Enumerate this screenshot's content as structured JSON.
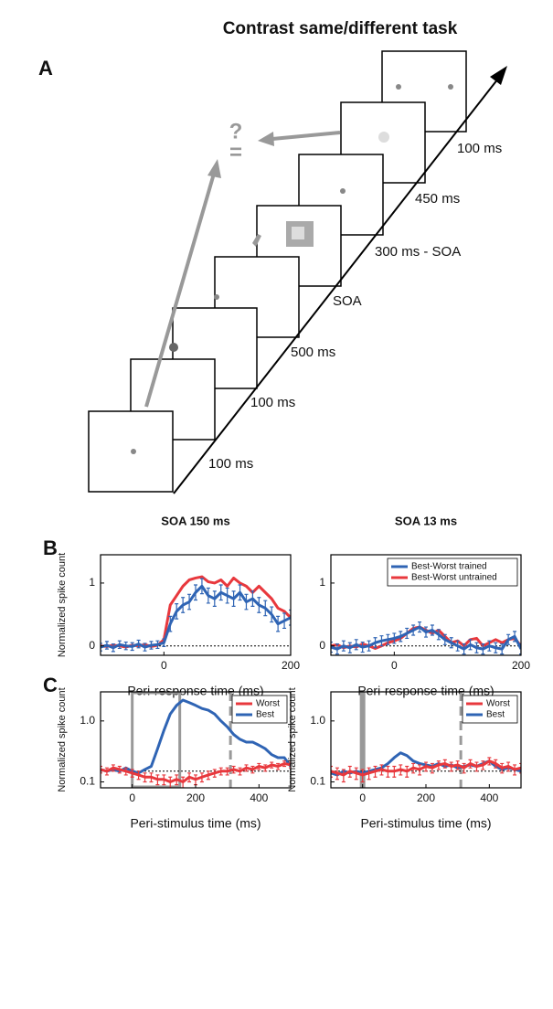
{
  "panel_a": {
    "title": "Contrast same/different task",
    "label": "A",
    "durations": [
      "100 ms",
      "100 ms",
      "500 ms",
      "SOA",
      "300 ms - SOA",
      "450 ms",
      "100 ms"
    ],
    "question": "?",
    "equals": "="
  },
  "chart_data": [
    {
      "type": "line",
      "panel_label": "B",
      "title": "SOA 150 ms",
      "ylabel": "Normalized spike count",
      "xlabel": "Peri-response time (ms)",
      "x": [
        -100,
        -90,
        -80,
        -70,
        -60,
        -50,
        -40,
        -30,
        -20,
        -10,
        0,
        10,
        20,
        30,
        40,
        50,
        60,
        70,
        80,
        90,
        100,
        110,
        120,
        130,
        140,
        150,
        160,
        170,
        180,
        190,
        200
      ],
      "xlim": [
        -100,
        200
      ],
      "xticks": [
        0,
        200
      ],
      "ylim": [
        -0.15,
        1.45
      ],
      "yticks": [
        0,
        1
      ],
      "hline": 0,
      "series": [
        {
          "color": "#e8383d",
          "values": [
            0.0,
            -0.01,
            0.01,
            0.0,
            -0.02,
            0.01,
            0.0,
            0.02,
            -0.01,
            0.01,
            0.1,
            0.65,
            0.8,
            0.95,
            1.05,
            1.08,
            1.1,
            1.02,
            1.0,
            1.05,
            0.95,
            1.08,
            1.0,
            0.95,
            0.85,
            0.95,
            0.85,
            0.75,
            0.6,
            0.55,
            0.45
          ]
        },
        {
          "color": "#2f64b4",
          "values": [
            -0.02,
            0.01,
            -0.03,
            0.02,
            0.0,
            -0.01,
            0.03,
            -0.02,
            0.01,
            0.02,
            0.05,
            0.35,
            0.55,
            0.65,
            0.7,
            0.85,
            0.95,
            0.8,
            0.75,
            0.85,
            0.8,
            0.75,
            0.85,
            0.7,
            0.75,
            0.65,
            0.6,
            0.5,
            0.35,
            0.4,
            0.45
          ],
          "errors": [
            0.06,
            0.06,
            0.06,
            0.06,
            0.06,
            0.06,
            0.06,
            0.06,
            0.06,
            0.06,
            0.06,
            0.12,
            0.12,
            0.12,
            0.12,
            0.12,
            0.12,
            0.12,
            0.12,
            0.12,
            0.12,
            0.12,
            0.12,
            0.12,
            0.12,
            0.12,
            0.12,
            0.12,
            0.12,
            0.12,
            0.12
          ]
        }
      ]
    },
    {
      "type": "line",
      "title": "SOA 13 ms",
      "xlabel": "Peri-response time (ms)",
      "x": [
        -100,
        -90,
        -80,
        -70,
        -60,
        -50,
        -40,
        -30,
        -20,
        -10,
        0,
        10,
        20,
        30,
        40,
        50,
        60,
        70,
        80,
        90,
        100,
        110,
        120,
        130,
        140,
        150,
        160,
        170,
        180,
        190,
        200
      ],
      "xlim": [
        -100,
        200
      ],
      "xticks": [
        0,
        200
      ],
      "ylim": [
        -0.15,
        1.45
      ],
      "yticks": [
        0,
        1
      ],
      "hline": 0,
      "legend": "upper right",
      "series": [
        {
          "name": "Best-Worst untrained",
          "color": "#e8383d",
          "values": [
            0.0,
            0.02,
            -0.03,
            0.0,
            -0.02,
            0.03,
            0.0,
            -0.04,
            0.0,
            0.05,
            0.08,
            0.12,
            0.2,
            0.28,
            0.3,
            0.25,
            0.2,
            0.25,
            0.15,
            0.05,
            0.08,
            0.0,
            0.1,
            0.12,
            0.0,
            0.05,
            0.1,
            0.05,
            0.1,
            0.12,
            0.0
          ]
        },
        {
          "name": "Best-Worst trained",
          "color": "#2f64b4",
          "values": [
            -0.02,
            -0.05,
            0.0,
            -0.03,
            0.02,
            -0.02,
            0.0,
            0.05,
            0.08,
            0.1,
            0.12,
            0.15,
            0.2,
            0.25,
            0.3,
            0.22,
            0.25,
            0.18,
            0.1,
            0.05,
            0.0,
            -0.05,
            0.02,
            -0.03,
            -0.05,
            0.0,
            -0.03,
            -0.05,
            0.1,
            0.15,
            -0.05
          ],
          "errors": [
            0.08,
            0.08,
            0.08,
            0.08,
            0.08,
            0.08,
            0.08,
            0.08,
            0.08,
            0.08,
            0.08,
            0.08,
            0.08,
            0.08,
            0.08,
            0.08,
            0.08,
            0.08,
            0.08,
            0.08,
            0.08,
            0.08,
            0.08,
            0.08,
            0.08,
            0.08,
            0.08,
            0.08,
            0.08,
            0.08,
            0.08
          ]
        }
      ]
    },
    {
      "type": "line",
      "panel_label": "C",
      "ylabel": "Normalized spike count",
      "xlabel": "Peri-stimulus time (ms)",
      "log_y": true,
      "x": [
        -100,
        -80,
        -60,
        -40,
        -20,
        0,
        20,
        40,
        60,
        80,
        100,
        120,
        140,
        160,
        180,
        200,
        220,
        240,
        260,
        280,
        300,
        320,
        340,
        360,
        380,
        400,
        420,
        440,
        460,
        480,
        500
      ],
      "xlim": [
        -100,
        500
      ],
      "xticks": [
        0,
        200,
        400
      ],
      "ylim": [
        0.08,
        3
      ],
      "yticks": [
        0.1,
        {
          "value": 1,
          "label": "1.0"
        }
      ],
      "hline": 0.15,
      "stimulus_window": [
        0,
        150
      ],
      "dashed_x": 310,
      "legend": "upper right",
      "series": [
        {
          "name": "Best",
          "color": "#2f64b4",
          "values": [
            0.16,
            0.15,
            0.16,
            0.15,
            0.17,
            0.15,
            0.14,
            0.16,
            0.18,
            0.35,
            0.7,
            1.3,
            1.8,
            2.2,
            2.0,
            1.8,
            1.6,
            1.5,
            1.3,
            1.0,
            0.8,
            0.6,
            0.5,
            0.45,
            0.45,
            0.4,
            0.35,
            0.28,
            0.25,
            0.25,
            0.18
          ]
        },
        {
          "name": "Worst",
          "color": "#e8383d",
          "values": [
            0.16,
            0.15,
            0.17,
            0.16,
            0.15,
            0.14,
            0.13,
            0.12,
            0.12,
            0.11,
            0.11,
            0.1,
            0.11,
            0.1,
            0.12,
            0.11,
            0.12,
            0.13,
            0.14,
            0.15,
            0.15,
            0.16,
            0.15,
            0.17,
            0.16,
            0.18,
            0.17,
            0.19,
            0.18,
            0.2,
            0.19
          ],
          "errors": [
            0.02,
            0.02,
            0.02,
            0.02,
            0.02,
            0.02,
            0.02,
            0.02,
            0.02,
            0.02,
            0.02,
            0.02,
            0.02,
            0.02,
            0.02,
            0.02,
            0.02,
            0.02,
            0.02,
            0.02,
            0.02,
            0.02,
            0.02,
            0.02,
            0.02,
            0.02,
            0.02,
            0.02,
            0.02,
            0.02,
            0.02
          ]
        }
      ]
    },
    {
      "type": "line",
      "ylabel": "Normalized spike count",
      "xlabel": "Peri-stimulus time (ms)",
      "log_y": true,
      "x": [
        -100,
        -80,
        -60,
        -40,
        -20,
        0,
        20,
        40,
        60,
        80,
        100,
        120,
        140,
        160,
        180,
        200,
        220,
        240,
        260,
        280,
        300,
        320,
        340,
        360,
        380,
        400,
        420,
        440,
        460,
        480,
        500
      ],
      "xlim": [
        -100,
        500
      ],
      "xticks": [
        0,
        200,
        400
      ],
      "ylim": [
        0.08,
        3
      ],
      "yticks": [
        0.1,
        {
          "value": 1,
          "label": "1.0"
        }
      ],
      "hline": 0.15,
      "stimulus_window": [
        0,
        13
      ],
      "dashed_x": 310,
      "legend": "upper right",
      "series": [
        {
          "name": "Best",
          "color": "#2f64b4",
          "values": [
            0.14,
            0.13,
            0.15,
            0.14,
            0.15,
            0.14,
            0.15,
            0.16,
            0.17,
            0.2,
            0.25,
            0.3,
            0.27,
            0.22,
            0.2,
            0.19,
            0.18,
            0.2,
            0.18,
            0.19,
            0.17,
            0.18,
            0.19,
            0.18,
            0.2,
            0.22,
            0.18,
            0.16,
            0.17,
            0.16,
            0.15
          ]
        },
        {
          "name": "Worst",
          "color": "#e8383d",
          "values": [
            0.15,
            0.14,
            0.13,
            0.15,
            0.14,
            0.13,
            0.14,
            0.15,
            0.16,
            0.15,
            0.15,
            0.16,
            0.15,
            0.17,
            0.16,
            0.18,
            0.17,
            0.19,
            0.2,
            0.18,
            0.19,
            0.17,
            0.2,
            0.18,
            0.19,
            0.22,
            0.2,
            0.17,
            0.18,
            0.16,
            0.17
          ],
          "errors": [
            0.03,
            0.03,
            0.03,
            0.03,
            0.03,
            0.03,
            0.03,
            0.03,
            0.03,
            0.03,
            0.03,
            0.03,
            0.03,
            0.03,
            0.03,
            0.03,
            0.03,
            0.03,
            0.03,
            0.03,
            0.03,
            0.03,
            0.03,
            0.03,
            0.03,
            0.03,
            0.03,
            0.03,
            0.03,
            0.03,
            0.03
          ]
        }
      ]
    }
  ]
}
